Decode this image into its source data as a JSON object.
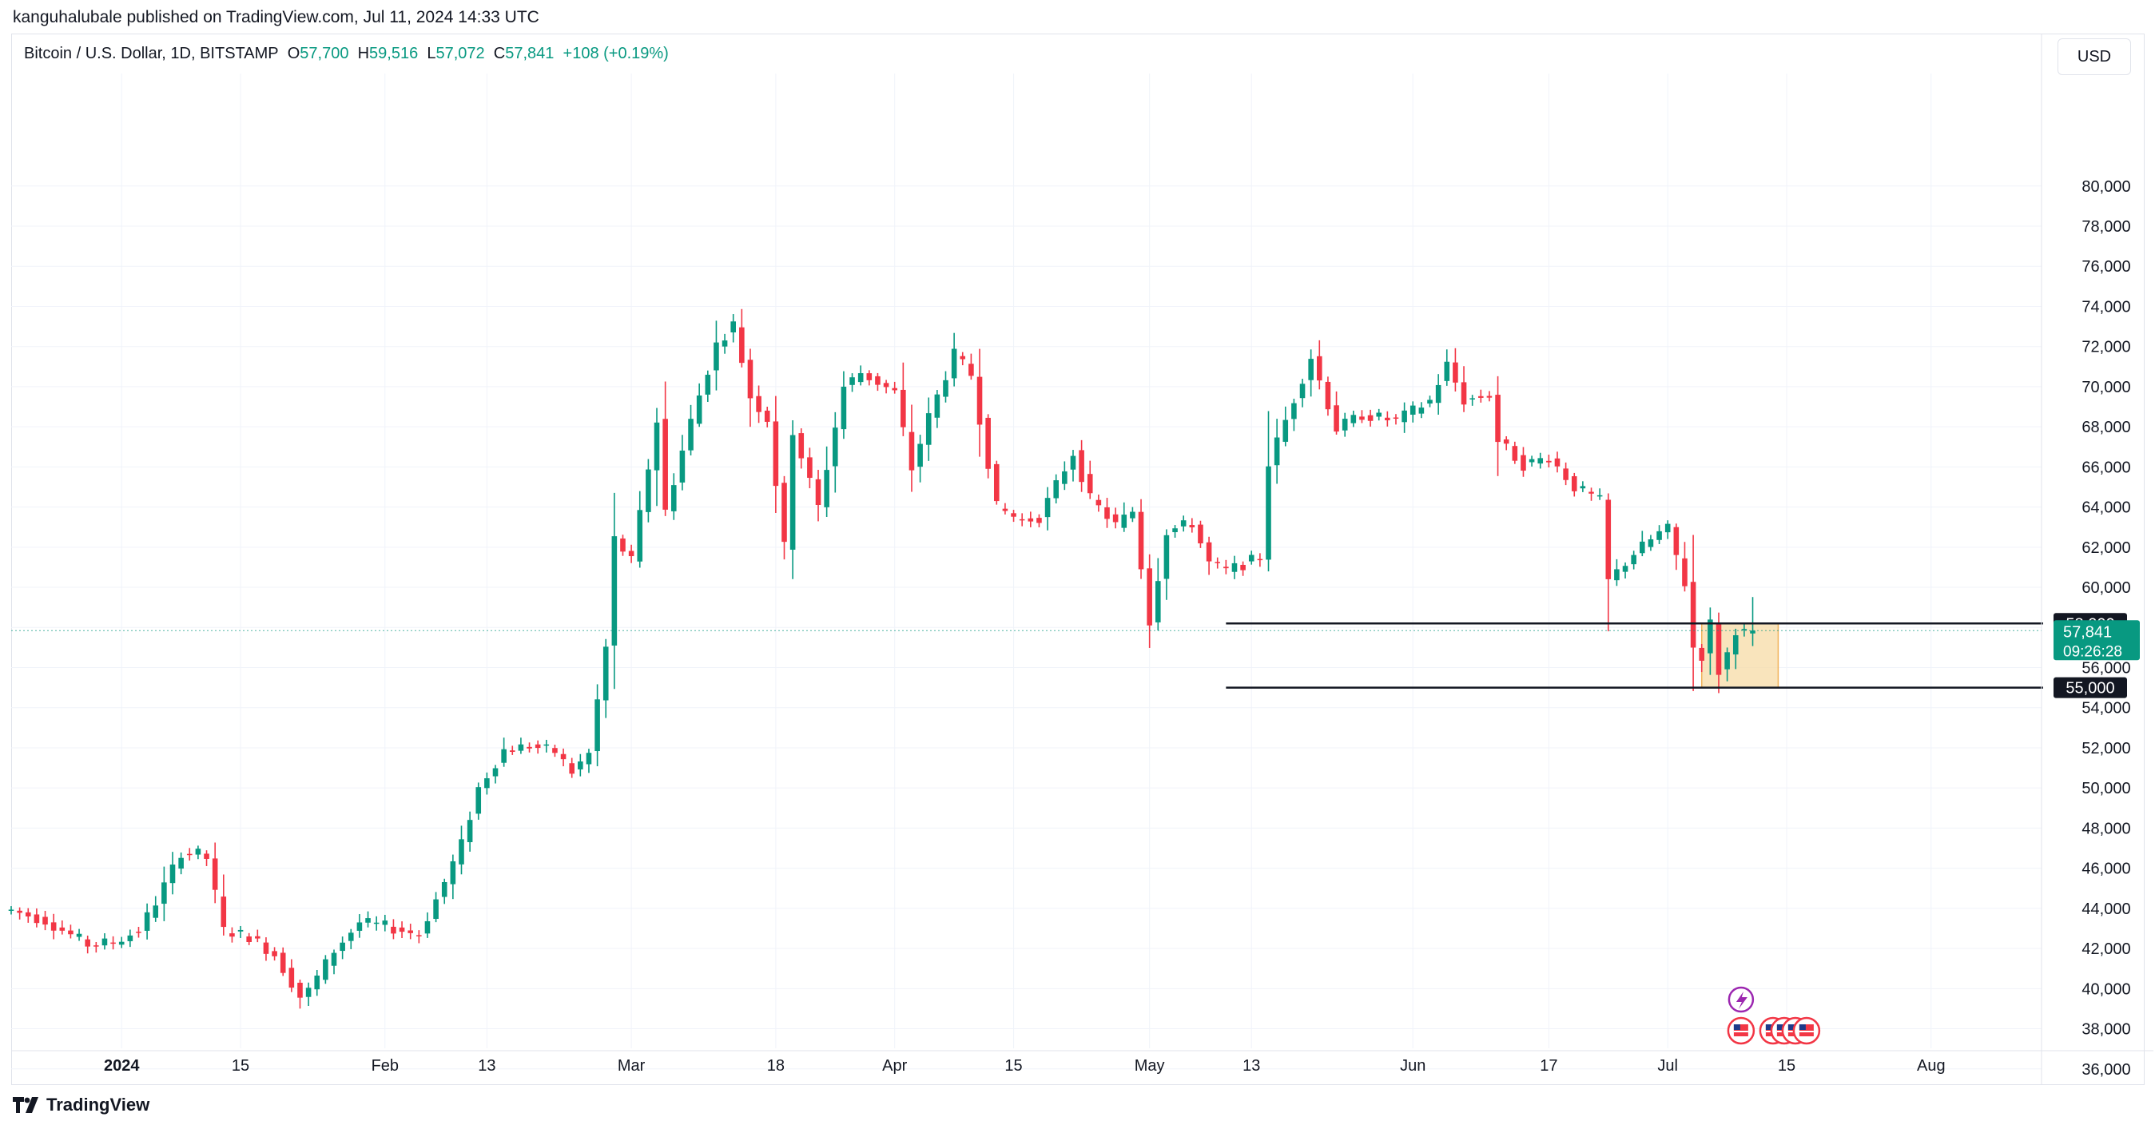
{
  "header": {
    "published": "kanguhalubale published on TradingView.com, Jul 11, 2024 14:33 UTC"
  },
  "legend": {
    "symbol": "Bitcoin / U.S. Dollar, 1D, BITSTAMP",
    "o_label": "O",
    "o_value": "57,700",
    "h_label": "H",
    "h_value": "59,516",
    "l_label": "L",
    "l_value": "57,072",
    "c_label": "C",
    "c_value": "57,841",
    "change": "+108 (+0.19%)"
  },
  "currency": "USD",
  "brand": "TradingView",
  "colors": {
    "up": "#089981",
    "down": "#f23645",
    "grid": "#f0f3fa",
    "level": "#131722",
    "zone_fill": "#f7d9a0",
    "zone_stroke": "#f0b25a",
    "icon_purple": "#9c27b0",
    "icon_red": "#f23645"
  },
  "chart_data": {
    "type": "candlestick",
    "symbol": "BTCUSD",
    "interval": "1D",
    "ylim": [
      34000,
      82500
    ],
    "y_ticks": [
      36000,
      38000,
      40000,
      42000,
      44000,
      46000,
      48000,
      50000,
      52000,
      54000,
      56000,
      58000,
      60000,
      62000,
      64000,
      66000,
      68000,
      70000,
      72000,
      74000,
      76000,
      78000,
      80000
    ],
    "x_range": [
      "2023-12-19",
      "2024-08-14"
    ],
    "x_ticks": [
      {
        "date": "2024-01-01",
        "label": "2024",
        "bold": true
      },
      {
        "date": "2024-01-15",
        "label": "15"
      },
      {
        "date": "2024-02-01",
        "label": "Feb"
      },
      {
        "date": "2024-02-13",
        "label": "13"
      },
      {
        "date": "2024-03-01",
        "label": "Mar"
      },
      {
        "date": "2024-03-18",
        "label": "18"
      },
      {
        "date": "2024-04-01",
        "label": "Apr"
      },
      {
        "date": "2024-04-15",
        "label": "15"
      },
      {
        "date": "2024-05-01",
        "label": "May"
      },
      {
        "date": "2024-05-13",
        "label": "13"
      },
      {
        "date": "2024-06-01",
        "label": "Jun"
      },
      {
        "date": "2024-06-17",
        "label": "17"
      },
      {
        "date": "2024-07-01",
        "label": "Jul"
      },
      {
        "date": "2024-07-15",
        "label": "15"
      },
      {
        "date": "2024-08-01",
        "label": "Aug"
      }
    ],
    "close_anchors": [
      [
        "2023-12-19",
        43900
      ],
      [
        "2023-12-23",
        43400
      ],
      [
        "2023-12-28",
        42200
      ],
      [
        "2023-12-31",
        42300
      ],
      [
        "2024-01-03",
        42900
      ],
      [
        "2024-01-05",
        44300
      ],
      [
        "2024-01-08",
        46800
      ],
      [
        "2024-01-10",
        46700
      ],
      [
        "2024-01-11",
        46500
      ],
      [
        "2024-01-13",
        42900
      ],
      [
        "2024-01-16",
        42600
      ],
      [
        "2024-01-19",
        41700
      ],
      [
        "2024-01-22",
        39600
      ],
      [
        "2024-01-23",
        39900
      ],
      [
        "2024-01-26",
        41900
      ],
      [
        "2024-01-29",
        43300
      ],
      [
        "2024-02-01",
        43100
      ],
      [
        "2024-02-05",
        42700
      ],
      [
        "2024-02-08",
        45300
      ],
      [
        "2024-02-10",
        47200
      ],
      [
        "2024-02-12",
        50000
      ],
      [
        "2024-02-15",
        51900
      ],
      [
        "2024-02-18",
        52100
      ],
      [
        "2024-02-21",
        51800
      ],
      [
        "2024-02-23",
        50800
      ],
      [
        "2024-02-25",
        51700
      ],
      [
        "2024-02-27",
        57000
      ],
      [
        "2024-02-28",
        62400
      ],
      [
        "2024-03-01",
        61300
      ],
      [
        "2024-03-04",
        68300
      ],
      [
        "2024-03-05",
        63800
      ],
      [
        "2024-03-08",
        68300
      ],
      [
        "2024-03-11",
        72100
      ],
      [
        "2024-03-13",
        73100
      ],
      [
        "2024-03-15",
        69500
      ],
      [
        "2024-03-17",
        68400
      ],
      [
        "2024-03-19",
        62000
      ],
      [
        "2024-03-20",
        67800
      ],
      [
        "2024-03-23",
        64000
      ],
      [
        "2024-03-26",
        70000
      ],
      [
        "2024-03-28",
        70700
      ],
      [
        "2024-04-01",
        69700
      ],
      [
        "2024-04-03",
        65900
      ],
      [
        "2024-04-05",
        68500
      ],
      [
        "2024-04-08",
        71600
      ],
      [
        "2024-04-10",
        70600
      ],
      [
        "2024-04-13",
        64000
      ],
      [
        "2024-04-16",
        63300
      ],
      [
        "2024-04-18",
        63500
      ],
      [
        "2024-04-22",
        66700
      ],
      [
        "2024-04-24",
        64400
      ],
      [
        "2024-04-27",
        63100
      ],
      [
        "2024-04-29",
        63800
      ],
      [
        "2024-05-01",
        58300
      ],
      [
        "2024-05-03",
        62800
      ],
      [
        "2024-05-06",
        63200
      ],
      [
        "2024-05-08",
        61200
      ],
      [
        "2024-05-10",
        60800
      ],
      [
        "2024-05-14",
        61500
      ],
      [
        "2024-05-15",
        66200
      ],
      [
        "2024-05-20",
        71500
      ],
      [
        "2024-05-23",
        67900
      ],
      [
        "2024-05-26",
        68600
      ],
      [
        "2024-05-30",
        68300
      ],
      [
        "2024-06-03",
        69300
      ],
      [
        "2024-06-05",
        71100
      ],
      [
        "2024-06-07",
        69300
      ],
      [
        "2024-06-10",
        69600
      ],
      [
        "2024-06-11",
        67300
      ],
      [
        "2024-06-14",
        66100
      ],
      [
        "2024-06-17",
        66500
      ],
      [
        "2024-06-20",
        65000
      ],
      [
        "2024-06-23",
        64300
      ],
      [
        "2024-06-24",
        60300
      ],
      [
        "2024-06-27",
        61700
      ],
      [
        "2024-06-30",
        62700
      ],
      [
        "2024-07-01",
        62900
      ],
      [
        "2024-07-03",
        60200
      ],
      [
        "2024-07-04",
        57000
      ],
      [
        "2024-07-05",
        56600
      ],
      [
        "2024-07-06",
        58200
      ],
      [
        "2024-07-07",
        55800
      ],
      [
        "2024-07-08",
        56700
      ],
      [
        "2024-07-09",
        57900
      ],
      [
        "2024-07-10",
        57733
      ],
      [
        "2024-07-11",
        57841
      ]
    ],
    "last_candle": {
      "date": "2024-07-11",
      "open": 57700,
      "high": 59516,
      "low": 57072,
      "close": 57841
    },
    "levels": [
      {
        "price": 58200,
        "label": "58,200",
        "from": "2024-05-10"
      },
      {
        "price": 55000,
        "label": "55,000",
        "from": "2024-05-10"
      }
    ],
    "zone": {
      "from": "2024-07-05",
      "to": "2024-07-14",
      "low": 55000,
      "high": 58200
    },
    "price_tag": {
      "price": "57,841",
      "countdown": "09:26:28"
    }
  }
}
